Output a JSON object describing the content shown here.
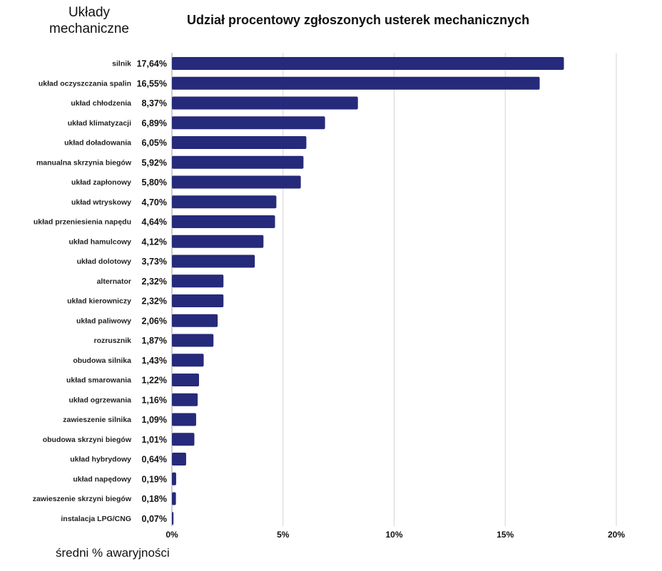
{
  "chart_data": {
    "type": "bar",
    "orientation": "horizontal",
    "title": "Udział procentowy zgłoszonych usterek mechanicznych",
    "ylabel": "Układy mechaniczne",
    "xlabel": "średni % awaryjności",
    "xlim": [
      0,
      20
    ],
    "xticks": [
      "0%",
      "5%",
      "10%",
      "15%",
      "20%"
    ],
    "grid": true,
    "bar_color": "#262a7a",
    "categories": [
      "silnik",
      "układ oczyszczania spalin",
      "układ chłodzenia",
      "układ klimatyzacji",
      "układ doładowania",
      "manualna skrzynia biegów",
      "układ zapłonowy",
      "układ wtryskowy",
      "układ przeniesienia napędu",
      "układ hamulcowy",
      "układ dolotowy",
      "alternator",
      "układ kierowniczy",
      "układ paliwowy",
      "rozrusznik",
      "obudowa silnika",
      "układ smarowania",
      "układ ogrzewania",
      "zawieszenie silnika",
      "obudowa skrzyni biegów",
      "układ hybrydowy",
      "układ napędowy",
      "zawieszenie skrzyni biegów",
      "instalacja LPG/CNG"
    ],
    "values": [
      17.64,
      16.55,
      8.37,
      6.89,
      6.05,
      5.92,
      5.8,
      4.7,
      4.64,
      4.12,
      3.73,
      2.32,
      2.32,
      2.06,
      1.87,
      1.43,
      1.22,
      1.16,
      1.09,
      1.01,
      0.64,
      0.19,
      0.18,
      0.07
    ],
    "value_labels": [
      "17,64%",
      "16,55%",
      "8,37%",
      "6,89%",
      "6,05%",
      "5,92%",
      "5,80%",
      "4,70%",
      "4,64%",
      "4,12%",
      "3,73%",
      "2,32%",
      "2,32%",
      "2,06%",
      "1,87%",
      "1,43%",
      "1,22%",
      "1,16%",
      "1,09%",
      "1,01%",
      "0,64%",
      "0,19%",
      "0,18%",
      "0,07%"
    ]
  }
}
